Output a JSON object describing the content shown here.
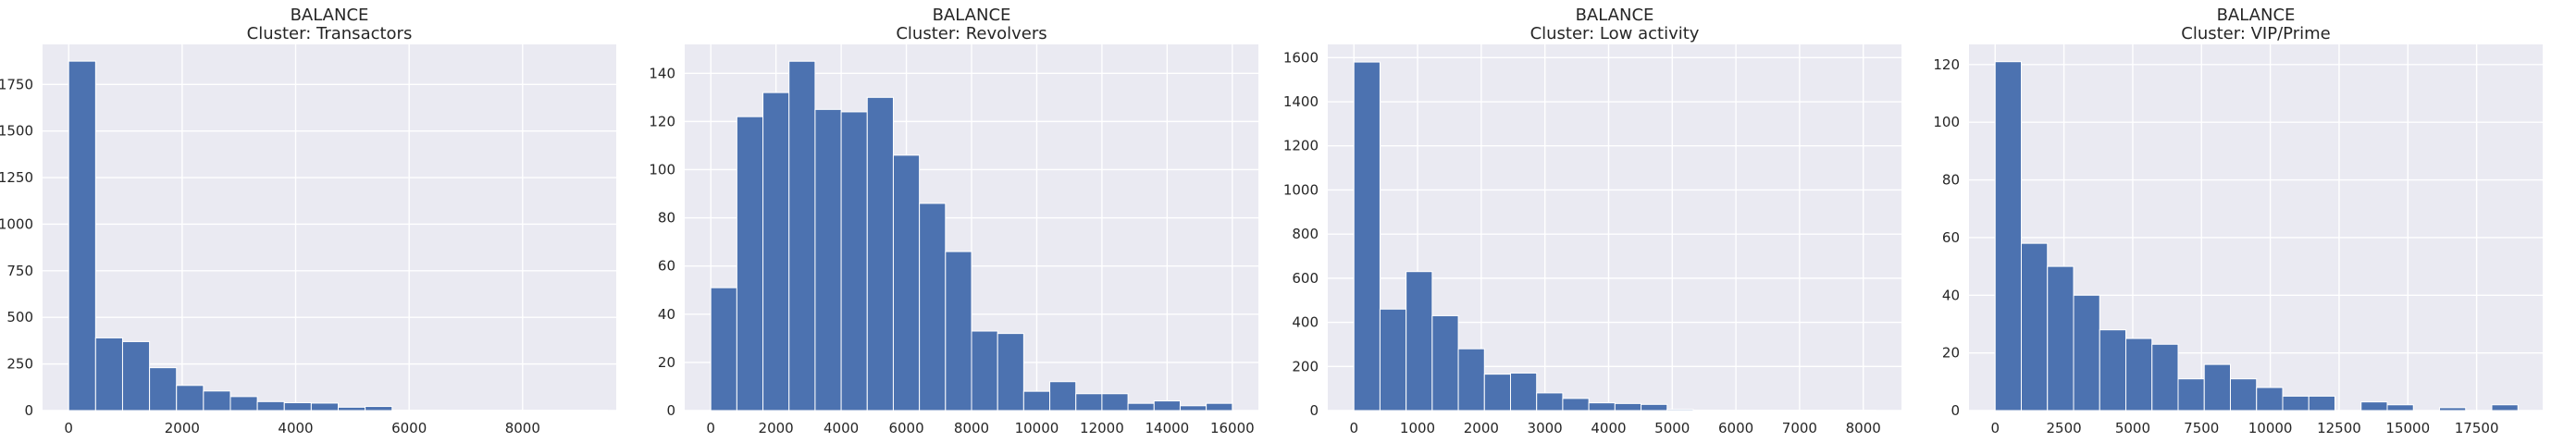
{
  "chart_data": [
    {
      "type": "bar",
      "title": "BALANCE",
      "subtitle": "Cluster: Transactors",
      "xlim": [
        -460,
        9650
      ],
      "ylim": [
        0,
        1965
      ],
      "xticks": [
        0,
        2000,
        4000,
        6000,
        8000
      ],
      "yticks": [
        0,
        250,
        500,
        750,
        1000,
        1250,
        1500,
        1750
      ],
      "bin_start": 0,
      "bin_width": 475,
      "values": [
        1875,
        390,
        370,
        230,
        135,
        105,
        75,
        48,
        42,
        40,
        18,
        22,
        2,
        2,
        1,
        1,
        1,
        1,
        1,
        1
      ],
      "grid": true,
      "xlabel": "",
      "ylabel": "",
      "color": "#4c72b0"
    },
    {
      "type": "bar",
      "title": "BALANCE",
      "subtitle": "Cluster: Revolvers",
      "xlim": [
        -800,
        16800
      ],
      "ylim": [
        0,
        152
      ],
      "xticks": [
        0,
        2000,
        4000,
        6000,
        8000,
        10000,
        12000,
        14000,
        16000
      ],
      "yticks": [
        0,
        20,
        40,
        60,
        80,
        100,
        120,
        140
      ],
      "bin_start": 0,
      "bin_width": 800,
      "values": [
        51,
        122,
        132,
        145,
        125,
        124,
        130,
        106,
        86,
        66,
        33,
        32,
        8,
        12,
        7,
        7,
        3,
        4,
        2,
        3
      ],
      "grid": true,
      "xlabel": "",
      "ylabel": "",
      "color": "#4c72b0"
    },
    {
      "type": "bar",
      "title": "BALANCE",
      "subtitle": "Cluster: Low activity",
      "xlim": [
        -410,
        8600
      ],
      "ylim": [
        0,
        1660
      ],
      "xticks": [
        0,
        1000,
        2000,
        3000,
        4000,
        5000,
        6000,
        7000,
        8000
      ],
      "yticks": [
        0,
        200,
        400,
        600,
        800,
        1000,
        1200,
        1400,
        1600
      ],
      "bin_start": 0,
      "bin_width": 410,
      "values": [
        1580,
        460,
        630,
        430,
        280,
        165,
        170,
        80,
        55,
        35,
        32,
        28,
        5,
        2,
        1,
        1,
        1,
        1,
        1,
        1
      ],
      "grid": true,
      "xlabel": "",
      "ylabel": "",
      "color": "#4c72b0"
    },
    {
      "type": "bar",
      "title": "BALANCE",
      "subtitle": "Cluster: VIP/Prime",
      "xlim": [
        -950,
        19900
      ],
      "ylim": [
        0,
        127
      ],
      "xticks": [
        0,
        2500,
        5000,
        7500,
        10000,
        12500,
        15000,
        17500
      ],
      "yticks": [
        0,
        20,
        40,
        60,
        80,
        100,
        120
      ],
      "bin_start": 0,
      "bin_width": 950,
      "values": [
        121,
        58,
        50,
        40,
        28,
        25,
        23,
        11,
        16,
        11,
        8,
        5,
        5,
        0,
        3,
        2,
        0,
        1,
        0,
        2
      ],
      "grid": true,
      "xlabel": "",
      "ylabel": "",
      "color": "#4c72b0"
    }
  ]
}
